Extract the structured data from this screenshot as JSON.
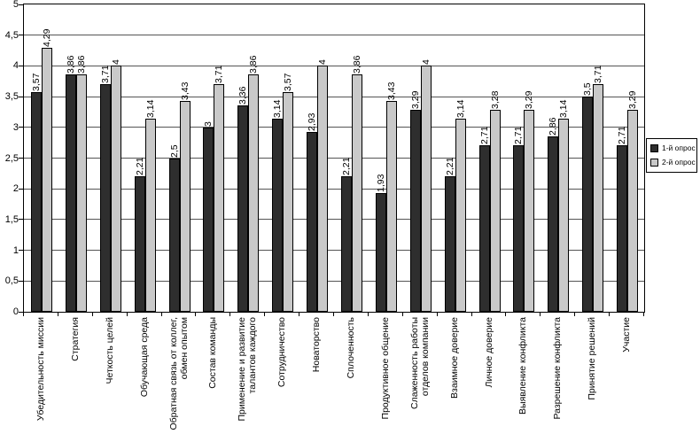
{
  "chart_data": {
    "type": "bar",
    "title": "",
    "xlabel": "",
    "ylabel": "",
    "categories": [
      "Убедительность миссии",
      "Стратегия",
      "Четкость целей",
      "Обучающая среда",
      "Обратная связь от коллег,\nобмен опытом",
      "Состав команды",
      "Применение и развитие\nталантов каждого",
      "Сотрудничество",
      "Новаторство",
      "Сплоченность",
      "Продуктивное общение",
      "Слаженность работы\nотделов компании",
      "Взаимное доверие",
      "Личное доверие",
      "Выявление конфликта",
      "Разрешение конфликта",
      "Принятие решений",
      "Участие"
    ],
    "series": [
      {
        "name": "1-й опрос",
        "color": "#2e2e2e",
        "values": [
          3.57,
          3.86,
          3.71,
          2.21,
          2.5,
          3,
          3.36,
          3.14,
          2.93,
          2.21,
          1.93,
          3.29,
          2.21,
          2.71,
          2.71,
          2.86,
          3.5,
          2.71
        ],
        "value_labels": [
          "3,57",
          "3,86",
          "3,71",
          "2,21",
          "2,5",
          "3",
          "3,36",
          "3,14",
          "2,93",
          "2,21",
          "1,93",
          "3,29",
          "2,21",
          "2,71",
          "2,71",
          "2,86",
          "3,5",
          "2,71"
        ]
      },
      {
        "name": "2-й опрос",
        "color": "#c9c9c9",
        "values": [
          4.29,
          3.86,
          4,
          3.14,
          3.43,
          3.71,
          3.86,
          3.57,
          4,
          3.86,
          3.43,
          4,
          3.14,
          3.28,
          3.29,
          3.14,
          3.71,
          3.29
        ],
        "value_labels": [
          "4,29",
          "3,86",
          "4",
          "3,14",
          "3,43",
          "3,71",
          "3,86",
          "3,57",
          "4",
          "3,86",
          "3,43",
          "4",
          "3,14",
          "3,28",
          "3,29",
          "3,14",
          "3,71",
          "3,29"
        ]
      }
    ],
    "ylim": [
      0,
      5
    ],
    "ytick_step": 0.5,
    "ytick_labels": [
      "0",
      "0,5",
      "1",
      "1,5",
      "2",
      "2,5",
      "3",
      "3,5",
      "4",
      "4,5",
      "5"
    ],
    "grid": true,
    "legend_position": "right",
    "bar_value_labels_rotated": true,
    "x_labels_rotated": true,
    "colors": {
      "series1": "#2e2e2e",
      "series2": "#c9c9c9",
      "gridline": "#555555",
      "axis": "#000000",
      "background": "#ffffff"
    }
  }
}
